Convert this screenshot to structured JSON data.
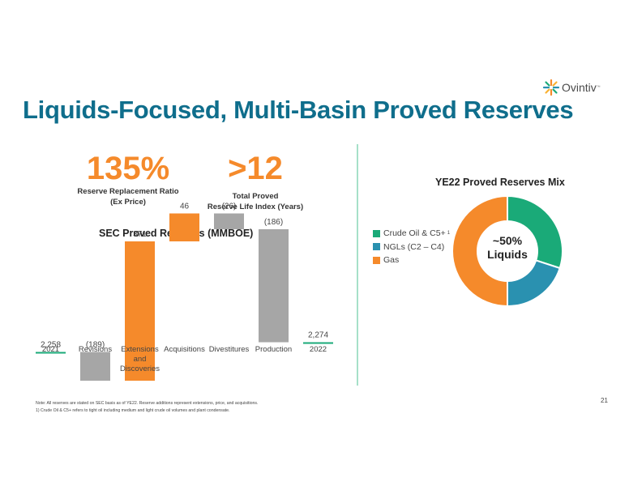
{
  "logo": {
    "text": "Ovintiv",
    "trademark": "™"
  },
  "title": "Liquids-Focused, Multi-Basin Proved Reserves",
  "kpis": [
    {
      "value": "135%",
      "label_line1": "Reserve Replacement Ratio",
      "label_line2": "(Ex Price)"
    },
    {
      "value": ">12",
      "label_line1": "Total Proved",
      "label_line2": "Reserve Life Index (Years)"
    }
  ],
  "chart_data": [
    {
      "type": "bar",
      "subtype": "waterfall",
      "title": "SEC Proved Reserves (MMBOE)",
      "categories": [
        "2021",
        "Revisions",
        "Extensions and Discoveries",
        "Acquisitions",
        "Divestitures",
        "Production",
        "2022"
      ],
      "category_lines": [
        [
          "2021"
        ],
        [
          "Revisions"
        ],
        [
          "Extensions",
          "and",
          "Discoveries"
        ],
        [
          "Acquisitions"
        ],
        [
          "Divestitures"
        ],
        [
          "Production"
        ],
        [
          "2022"
        ]
      ],
      "values": [
        2258,
        -189,
        371,
        46,
        -26,
        -186,
        2274
      ],
      "value_labels": [
        "2,258",
        "(189)",
        "371",
        "46",
        "(26)",
        "(186)",
        "2,274"
      ],
      "colors": {
        "total": "#1aaa78",
        "increase": "#f58a2b",
        "decrease": "#a6a6a6"
      },
      "grid": false
    },
    {
      "type": "pie",
      "subtype": "donut",
      "title": "YE22 Proved Reserves Mix",
      "center_label_line1": "~50%",
      "center_label_line2": "Liquids",
      "slices": [
        {
          "label": "Crude Oil & C5+",
          "superscript": "1",
          "value": 30,
          "color": "#1aaa78"
        },
        {
          "label": "NGLs (C2 – C4)",
          "superscript": "",
          "value": 20,
          "color": "#2a91b0"
        },
        {
          "label": "Gas",
          "superscript": "",
          "value": 50,
          "color": "#f58a2b"
        }
      ],
      "legend_position": "left"
    }
  ],
  "footnotes": [
    "Note: All reserves are stated on SEC basis as of YE22. Reserve additions represent extensions, price, and acquisitions.",
    "1) Crude Oil & C5+ refers to tight oil including medium and light crude oil volumes and plant condensate."
  ],
  "page_number": "21"
}
